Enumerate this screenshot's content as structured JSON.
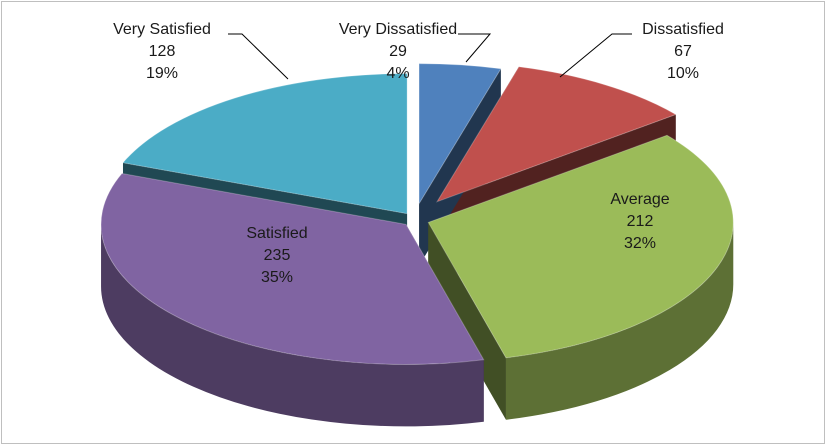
{
  "chart_data": {
    "type": "pie",
    "title": "",
    "categories": [
      "Very Dissatisfied",
      "Dissatisfied",
      "Average",
      "Satisfied",
      "Very Satisfied"
    ],
    "values": [
      29,
      67,
      212,
      235,
      128
    ],
    "percent_labels": [
      "4%",
      "10%",
      "32%",
      "35%",
      "19%"
    ],
    "colors": [
      "#4f81bd",
      "#c0504d",
      "#9bbb59",
      "#8064a2",
      "#4bacc6"
    ],
    "exploded": true,
    "three_d": true,
    "legend": "none"
  }
}
